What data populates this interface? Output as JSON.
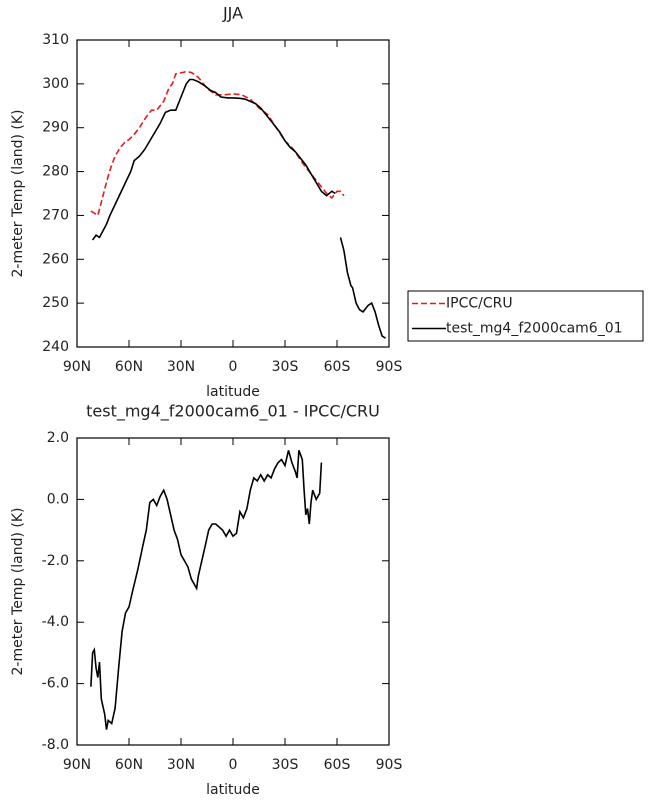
{
  "chart_data": [
    {
      "type": "line",
      "title": "JJA",
      "xlabel": "latitude",
      "ylabel": "2-meter Temp (land) (K)",
      "xlim": [
        90,
        -90
      ],
      "ylim": [
        240,
        310
      ],
      "xticks": [
        {
          "value": 90,
          "label": "90N"
        },
        {
          "value": 60,
          "label": "60N"
        },
        {
          "value": 30,
          "label": "30N"
        },
        0,
        {
          "value": -30,
          "label": "30S"
        },
        {
          "value": -60,
          "label": "60S"
        },
        {
          "value": -90,
          "label": "90S"
        }
      ],
      "yticks": [
        240,
        250,
        260,
        270,
        280,
        290,
        300,
        310
      ],
      "legend_position": "right",
      "series": [
        {
          "name": "IPCC/CRU",
          "color": "#e41a1c",
          "linestyle": "dashed",
          "x": [
            82,
            80,
            78,
            76,
            74,
            72,
            70,
            68,
            65,
            62,
            60,
            57,
            54,
            50,
            47,
            44,
            40,
            37,
            35,
            33,
            30,
            27,
            24,
            20,
            15,
            10,
            5,
            0,
            -5,
            -10,
            -15,
            -20,
            -25,
            -30,
            -35,
            -40,
            -45,
            -50,
            -54,
            -57,
            -60,
            -62,
            -64
          ],
          "values": [
            271,
            270.5,
            270,
            273,
            276,
            279,
            281.5,
            283.5,
            285.5,
            286.8,
            287.3,
            288.5,
            290,
            292.5,
            294,
            294,
            296,
            299,
            300,
            302.3,
            302.5,
            302.8,
            302.6,
            301.5,
            299,
            297.5,
            297.5,
            297.7,
            297.5,
            296.5,
            294.5,
            293,
            290,
            287,
            285,
            282,
            279.5,
            277,
            275,
            274,
            275.5,
            275.5,
            274.5
          ]
        },
        {
          "name": "test_mg4_f2000cam6_01",
          "color": "#000000",
          "linestyle": "solid",
          "x": [
            81,
            79,
            77,
            75,
            73,
            71,
            68,
            65,
            62,
            59,
            57,
            54,
            51,
            48,
            45,
            42,
            39,
            36,
            33,
            30,
            27,
            25,
            23,
            20,
            16,
            13,
            10,
            7,
            3,
            0,
            -4,
            -7,
            -10,
            -13,
            -16,
            -18,
            -21,
            -24,
            -27,
            -30,
            -33,
            -36,
            -39,
            -42,
            -45,
            -48,
            -51,
            -54,
            -57,
            -59,
            -61,
            -62,
            -64,
            -66,
            -68,
            -69,
            -71,
            -73,
            -75,
            -78,
            -80,
            -82,
            -84,
            -86,
            -88
          ],
          "values": [
            264.4,
            265.5,
            265,
            266.5,
            268,
            270,
            272.5,
            275,
            277.5,
            280,
            282.5,
            283.5,
            285,
            287,
            289,
            291,
            293.5,
            294,
            294,
            297,
            300,
            301,
            301,
            300.5,
            299.5,
            298.5,
            298,
            297,
            296.8,
            296.8,
            296.7,
            296.5,
            296,
            295.5,
            294.5,
            293.5,
            292,
            290.5,
            289,
            287,
            285.5,
            284.5,
            283,
            281.5,
            279.5,
            277.5,
            275.5,
            274.5,
            275.5,
            275,
            null,
            265,
            262,
            257,
            254,
            253.5,
            250,
            248.5,
            248,
            249.5,
            250,
            248,
            245,
            242.5,
            242
          ]
        }
      ]
    },
    {
      "type": "line",
      "title": "test_mg4_f2000cam6_01 - IPCC/CRU",
      "xlabel": "latitude",
      "ylabel": "2-meter Temp (land) (K)",
      "xlim": [
        90,
        -90
      ],
      "ylim": [
        -8,
        2
      ],
      "xticks": [
        {
          "value": 90,
          "label": "90N"
        },
        {
          "value": 60,
          "label": "60N"
        },
        {
          "value": 30,
          "label": "30N"
        },
        0,
        {
          "value": -30,
          "label": "30S"
        },
        {
          "value": -60,
          "label": "60S"
        },
        {
          "value": -90,
          "label": "90S"
        }
      ],
      "yticks": [
        {
          "value": -8,
          "label": "-8.0"
        },
        {
          "value": -6,
          "label": "-6.0"
        },
        {
          "value": -4,
          "label": "-4.0"
        },
        {
          "value": -2,
          "label": "-2.0"
        },
        {
          "value": 0,
          "label": "0.0"
        },
        {
          "value": 2,
          "label": "2.0"
        }
      ],
      "series": [
        {
          "color": "#000000",
          "linestyle": "solid",
          "x": [
            82,
            81,
            80,
            79,
            78,
            77,
            76,
            74,
            73,
            72,
            70,
            68,
            66,
            64,
            62,
            60,
            58,
            55,
            52,
            50,
            48,
            46,
            44,
            42,
            40,
            38,
            36,
            34,
            32,
            30,
            28,
            26,
            24,
            22,
            21,
            20,
            18,
            16,
            14,
            12,
            10,
            8,
            6,
            4,
            2,
            0,
            -2,
            -4,
            -6,
            -8,
            -10,
            -12,
            -14,
            -16,
            -18,
            -20,
            -22,
            -24,
            -26,
            -28,
            -30,
            -32,
            -34,
            -36,
            -37,
            -38,
            -40,
            -41,
            -42,
            -43,
            -44,
            -45,
            -46,
            -48,
            -50,
            -51
          ],
          "values": [
            -6.1,
            -5.0,
            -4.9,
            -5.5,
            -5.8,
            -5.3,
            -6.5,
            -7.0,
            -7.5,
            -7.2,
            -7.3,
            -6.8,
            -5.5,
            -4.3,
            -3.7,
            -3.5,
            -3.0,
            -2.3,
            -1.5,
            -1.0,
            -0.1,
            0.0,
            -0.2,
            0.1,
            0.3,
            0.0,
            -0.5,
            -1.0,
            -1.3,
            -1.8,
            -2.0,
            -2.2,
            -2.6,
            -2.8,
            -2.9,
            -2.5,
            -2.0,
            -1.5,
            -1.0,
            -0.8,
            -0.8,
            -0.9,
            -1.0,
            -1.2,
            -1.0,
            -1.2,
            -1.1,
            -0.4,
            -0.6,
            -0.3,
            0.3,
            0.7,
            0.6,
            0.8,
            0.6,
            0.8,
            0.7,
            1.0,
            1.2,
            1.3,
            1.1,
            1.6,
            1.2,
            0.9,
            0.7,
            1.6,
            1.3,
            0.3,
            -0.5,
            -0.3,
            -0.8,
            -0.1,
            0.3,
            0.0,
            0.2,
            1.2
          ]
        }
      ]
    }
  ]
}
